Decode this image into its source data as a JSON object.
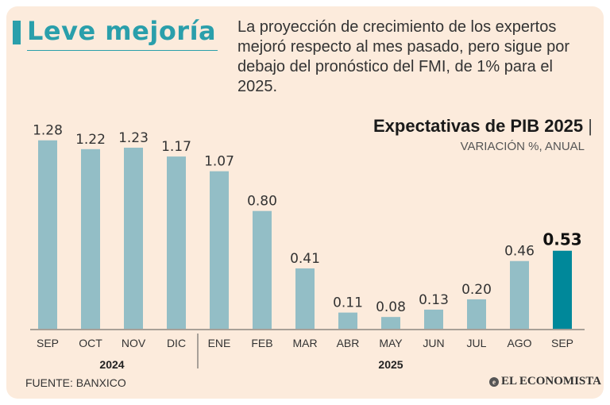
{
  "header": {
    "title": "Leve mejoría",
    "description": "La proyección de crecimiento de los expertos mejoró respecto al mes pasado, pero sigue por debajo del pronóstico del FMI, de 1% para el 2025."
  },
  "chart_title": "Expectativas de PIB 2025",
  "chart_title_separator": "|",
  "chart_subtitle": "VARIACIÓN %, ANUAL",
  "source": "FUENTE: BANXICO",
  "brand": "EL ECONOMISTA",
  "colors": {
    "bar": "#93bec6",
    "highlight": "#00889a",
    "accent": "#2a9fab",
    "background": "#fcebdc"
  },
  "chart_data": {
    "type": "bar",
    "categories": [
      "SEP",
      "OCT",
      "NOV",
      "DIC",
      "ENE",
      "FEB",
      "MAR",
      "ABR",
      "MAY",
      "JUN",
      "JUL",
      "AGO",
      "SEP"
    ],
    "values": [
      1.28,
      1.22,
      1.23,
      1.17,
      1.07,
      0.8,
      0.41,
      0.11,
      0.08,
      0.13,
      0.2,
      0.46,
      0.53
    ],
    "labels": [
      "1.28",
      "1.22",
      "1.23",
      "1.17",
      "1.07",
      "0.80",
      "0.41",
      "0.11",
      "0.08",
      "0.13",
      "0.20",
      "0.46",
      "0.53"
    ],
    "highlight_index": 12,
    "year_groups": [
      {
        "label": "2024",
        "start": 0,
        "end": 3
      },
      {
        "label": "2025",
        "start": 4,
        "end": 12
      }
    ],
    "ylim": [
      0,
      1.3
    ]
  }
}
